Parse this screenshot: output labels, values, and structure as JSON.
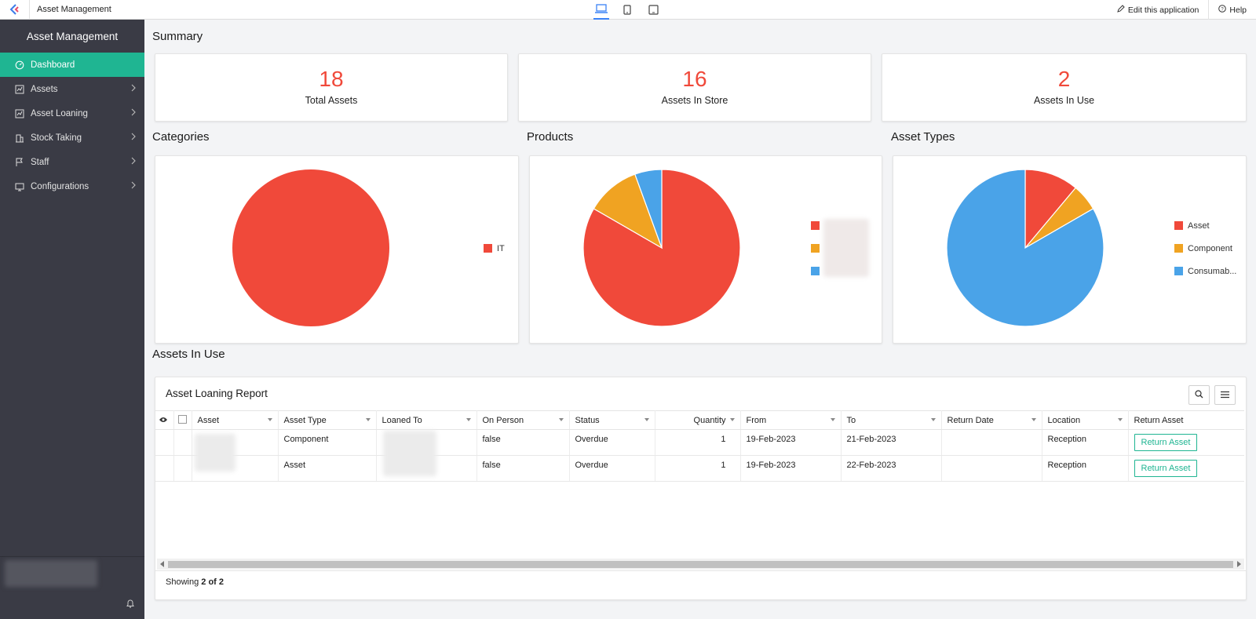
{
  "app": {
    "title": "Asset Management"
  },
  "topbar": {
    "device_icons": [
      "laptop-icon",
      "tablet-icon",
      "tablet-landscape-icon"
    ],
    "edit_label": "Edit this application",
    "help_label": "Help"
  },
  "sidebar": {
    "title": "Asset Management",
    "items": [
      {
        "label": "Dashboard",
        "icon": "dashboard-icon",
        "active": true
      },
      {
        "label": "Assets",
        "icon": "chart-icon"
      },
      {
        "label": "Asset Loaning",
        "icon": "chart-icon"
      },
      {
        "label": "Stock Taking",
        "icon": "building-icon"
      },
      {
        "label": "Staff",
        "icon": "flag-icon"
      },
      {
        "label": "Configurations",
        "icon": "monitor-icon"
      }
    ]
  },
  "summary": {
    "title": "Summary",
    "stats": [
      {
        "value": "18",
        "label": "Total Assets"
      },
      {
        "value": "16",
        "label": "Assets In Store"
      },
      {
        "value": "2",
        "label": "Assets In Use"
      }
    ]
  },
  "colors": {
    "accent": "#1fb592",
    "red": "#f0493a",
    "orange": "#f0a322",
    "blue": "#4aa3e8"
  },
  "charts": {
    "categories_title": "Categories",
    "products_title": "Products",
    "asset_types_title": "Asset Types"
  },
  "chart_data": [
    {
      "type": "pie",
      "title": "Categories",
      "labels": [
        "IT"
      ],
      "values": [
        18
      ],
      "colors": [
        "#f0493a"
      ],
      "legend": "right"
    },
    {
      "type": "pie",
      "title": "Products",
      "labels": [
        "",
        "",
        ""
      ],
      "values": [
        15,
        2,
        1
      ],
      "colors": [
        "#f0493a",
        "#f0a322",
        "#4aa3e8"
      ],
      "legend": "right"
    },
    {
      "type": "pie",
      "title": "Asset Types",
      "labels": [
        "Asset",
        "Component",
        "Consumab..."
      ],
      "values": [
        2,
        1,
        15
      ],
      "colors": [
        "#f0493a",
        "#f0a322",
        "#4aa3e8"
      ],
      "legend": "right"
    }
  ],
  "in_use": {
    "section_title": "Assets In Use",
    "report_title": "Asset Loaning Report",
    "columns": [
      "Asset",
      "Asset Type",
      "Loaned To",
      "On Person",
      "Status",
      "Quantity",
      "From",
      "To",
      "Return Date",
      "Location",
      "Return Asset"
    ],
    "rows": [
      {
        "asset": "",
        "asset_type": "Component",
        "loaned_to": "",
        "on_person": "false",
        "status": "Overdue",
        "quantity": "1",
        "from": "19-Feb-2023",
        "to": "21-Feb-2023",
        "return_date": "",
        "location": "Reception",
        "action": "Return Asset"
      },
      {
        "asset": "",
        "asset_type": "Asset",
        "loaned_to": "",
        "on_person": "false",
        "status": "Overdue",
        "quantity": "1",
        "from": "19-Feb-2023",
        "to": "22-Feb-2023",
        "return_date": "",
        "location": "Reception",
        "action": "Return Asset"
      }
    ],
    "footer_prefix": "Showing ",
    "footer_count": "2 of 2"
  }
}
